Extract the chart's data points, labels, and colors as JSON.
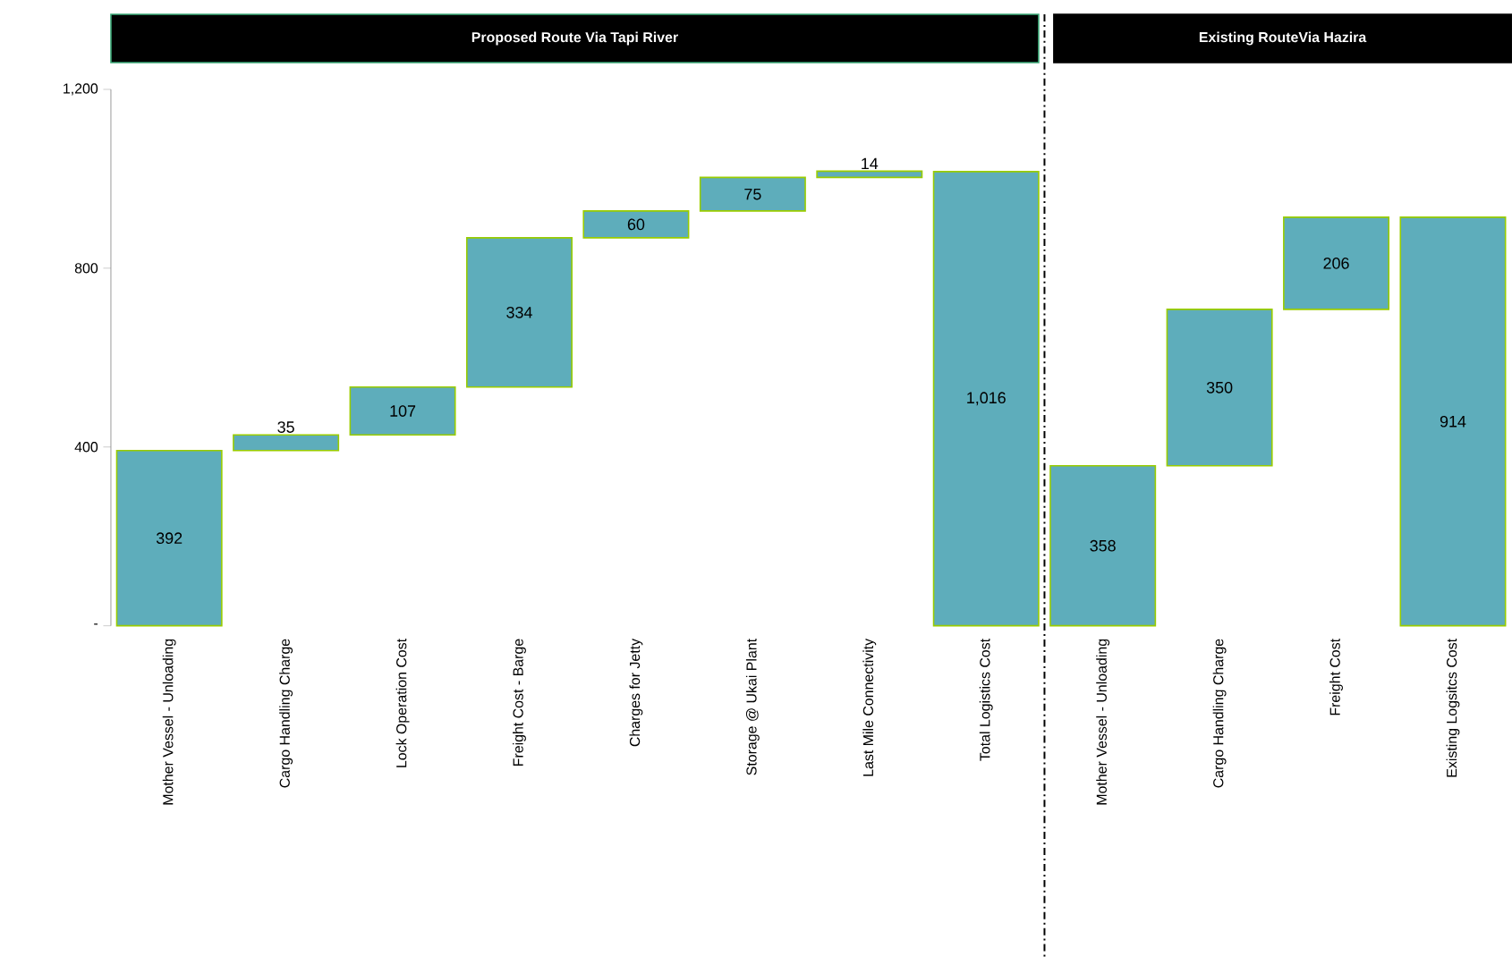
{
  "chart_data": {
    "type": "bar",
    "annotations": [
      "Proposed Route Via Tapi River",
      "Existing RouteVia Hazira"
    ],
    "categories": [
      "Mother Vessel - Unloading",
      "Cargo Handling Charge",
      "Lock Operation Cost",
      "Freight Cost - Barge",
      "Charges for Jetty",
      "Storage @ Ukai Plant",
      "Last Mile Connectivity",
      "Total Logistics Cost",
      "Mother Vessel - Unloading",
      "Cargo Handling Charge",
      "Freight Cost",
      "Existing Logsitcs Cost"
    ],
    "values": [
      392,
      35,
      107,
      334,
      60,
      75,
      14,
      1016,
      358,
      350,
      206,
      914
    ],
    "base": [
      0,
      392,
      427,
      534,
      868,
      928,
      1003,
      0,
      0,
      358,
      708,
      0
    ],
    "value_labels": [
      "392",
      "35",
      "107",
      "334",
      "60",
      "75",
      "14",
      "1,016",
      "358",
      "350",
      "206",
      "914"
    ],
    "color": "#5eadbb",
    "ylim": [
      0,
      1200
    ],
    "yticks": [
      {
        "value": 0,
        "label": "-"
      },
      400,
      800,
      {
        "value": 1200,
        "label": "1,200"
      }
    ],
    "grid": false
  }
}
